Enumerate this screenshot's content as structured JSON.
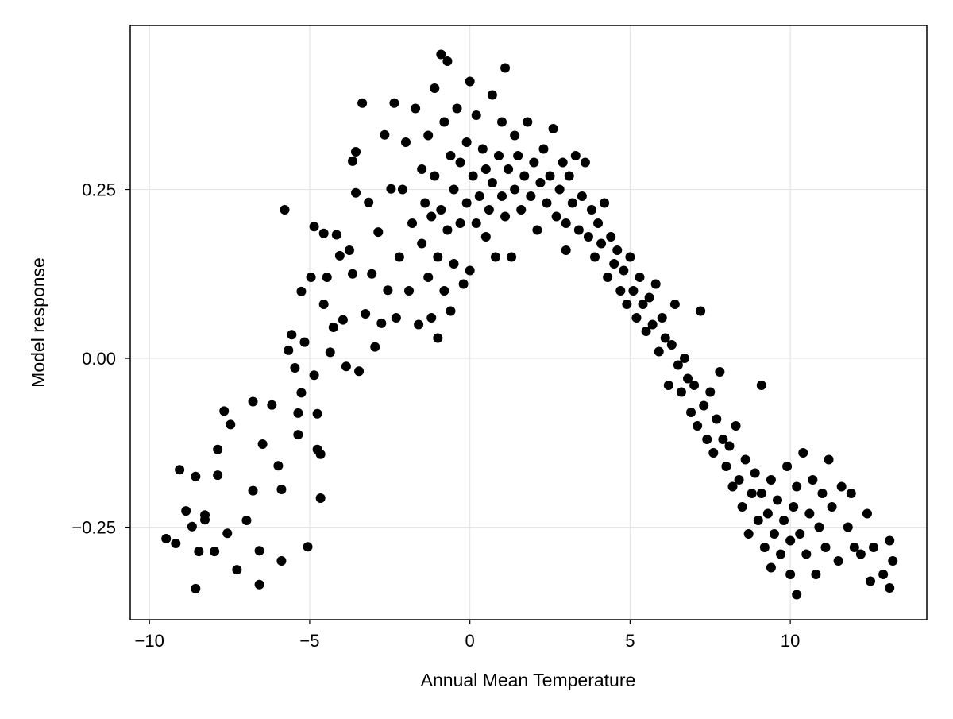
{
  "chart_data": {
    "type": "scatter",
    "title": "",
    "xlabel": "Annual Mean Temperature",
    "ylabel": "Model response",
    "xlim": [
      -10.6,
      14.26
    ],
    "ylim": [
      -0.387,
      0.493
    ],
    "xticks": [
      -10,
      -5,
      0,
      5,
      10
    ],
    "xtick_labels": [
      "−10",
      "−5",
      "0",
      "5",
      "10"
    ],
    "yticks": [
      -0.25,
      0,
      0.25
    ],
    "ytick_labels": [
      "−0.25",
      "0.00",
      "0.25"
    ],
    "grid": true,
    "marker_color": "#000000",
    "grid_color": "#e6e6e6",
    "points": [
      [
        -9.48,
        -0.267
      ],
      [
        -9.18,
        -0.274
      ],
      [
        -9.06,
        -0.165
      ],
      [
        -8.56,
        -0.341
      ],
      [
        -8.56,
        -0.175
      ],
      [
        -8.86,
        -0.226
      ],
      [
        -8.67,
        -0.249
      ],
      [
        -8.46,
        -0.286
      ],
      [
        -8.27,
        -0.232
      ],
      [
        -8.27,
        -0.239
      ],
      [
        -7.97,
        -0.286
      ],
      [
        -7.87,
        -0.173
      ],
      [
        -7.87,
        -0.135
      ],
      [
        -7.67,
        -0.078
      ],
      [
        -7.47,
        -0.098
      ],
      [
        -7.57,
        -0.259
      ],
      [
        -7.27,
        -0.313
      ],
      [
        -6.97,
        -0.24
      ],
      [
        -6.77,
        -0.064
      ],
      [
        -6.77,
        -0.196
      ],
      [
        -6.57,
        -0.335
      ],
      [
        -6.57,
        -0.285
      ],
      [
        -6.47,
        -0.127
      ],
      [
        -6.18,
        -0.069
      ],
      [
        -5.98,
        -0.159
      ],
      [
        -5.88,
        -0.194
      ],
      [
        -5.88,
        -0.3
      ],
      [
        -5.78,
        0.22
      ],
      [
        -5.66,
        0.012
      ],
      [
        -5.56,
        0.035
      ],
      [
        -5.46,
        -0.014
      ],
      [
        -5.36,
        -0.113
      ],
      [
        -5.36,
        -0.081
      ],
      [
        -5.26,
        -0.051
      ],
      [
        -5.26,
        0.099
      ],
      [
        -5.16,
        0.024
      ],
      [
        -5.06,
        -0.279
      ],
      [
        -4.96,
        0.12
      ],
      [
        -4.86,
        0.195
      ],
      [
        -4.86,
        -0.025
      ],
      [
        -4.76,
        -0.082
      ],
      [
        -4.76,
        -0.135
      ],
      [
        -4.66,
        -0.207
      ],
      [
        -4.66,
        -0.142
      ],
      [
        -4.56,
        0.185
      ],
      [
        -4.56,
        0.08
      ],
      [
        -4.46,
        0.12
      ],
      [
        -4.36,
        0.009
      ],
      [
        -4.26,
        0.046
      ],
      [
        -4.16,
        0.183
      ],
      [
        -4.06,
        0.152
      ],
      [
        -3.96,
        0.057
      ],
      [
        -3.86,
        -0.012
      ],
      [
        -3.76,
        0.16
      ],
      [
        -3.66,
        0.125
      ],
      [
        -3.66,
        0.292
      ],
      [
        -3.56,
        0.306
      ],
      [
        -3.56,
        0.245
      ],
      [
        -3.46,
        -0.019
      ],
      [
        -3.36,
        0.378
      ],
      [
        -3.26,
        0.066
      ],
      [
        -3.16,
        0.231
      ],
      [
        -3.06,
        0.125
      ],
      [
        -2.96,
        0.017
      ],
      [
        -2.86,
        0.187
      ],
      [
        -2.76,
        0.052
      ],
      [
        -2.66,
        0.331
      ],
      [
        -2.56,
        0.101
      ],
      [
        -2.46,
        0.251
      ],
      [
        -2.36,
        0.378
      ],
      [
        -2.3,
        0.06
      ],
      [
        -2.2,
        0.15
      ],
      [
        -2.1,
        0.25
      ],
      [
        -2.0,
        0.32
      ],
      [
        -1.9,
        0.1
      ],
      [
        -1.8,
        0.2
      ],
      [
        -1.7,
        0.37
      ],
      [
        -1.6,
        0.05
      ],
      [
        -1.5,
        0.28
      ],
      [
        -1.5,
        0.17
      ],
      [
        -1.4,
        0.23
      ],
      [
        -1.3,
        0.12
      ],
      [
        -1.3,
        0.33
      ],
      [
        -1.2,
        0.06
      ],
      [
        -1.2,
        0.21
      ],
      [
        -1.1,
        0.4
      ],
      [
        -1.1,
        0.27
      ],
      [
        -1.0,
        0.15
      ],
      [
        -1.0,
        0.03
      ],
      [
        -0.9,
        0.45
      ],
      [
        -0.9,
        0.22
      ],
      [
        -0.8,
        0.35
      ],
      [
        -0.8,
        0.1
      ],
      [
        -0.7,
        0.19
      ],
      [
        -0.7,
        0.44
      ],
      [
        -0.6,
        0.3
      ],
      [
        -0.6,
        0.07
      ],
      [
        -0.5,
        0.25
      ],
      [
        -0.5,
        0.14
      ],
      [
        -0.4,
        0.37
      ],
      [
        -0.3,
        0.2
      ],
      [
        -0.3,
        0.29
      ],
      [
        -0.2,
        0.11
      ],
      [
        -0.1,
        0.32
      ],
      [
        -0.1,
        0.23
      ],
      [
        0.0,
        0.13
      ],
      [
        0.0,
        0.41
      ],
      [
        0.1,
        0.27
      ],
      [
        0.2,
        0.2
      ],
      [
        0.2,
        0.36
      ],
      [
        0.3,
        0.24
      ],
      [
        0.4,
        0.31
      ],
      [
        0.5,
        0.18
      ],
      [
        0.5,
        0.28
      ],
      [
        0.6,
        0.22
      ],
      [
        0.7,
        0.39
      ],
      [
        0.7,
        0.26
      ],
      [
        0.8,
        0.15
      ],
      [
        0.9,
        0.3
      ],
      [
        1.0,
        0.24
      ],
      [
        1.0,
        0.35
      ],
      [
        1.1,
        0.43
      ],
      [
        1.1,
        0.21
      ],
      [
        1.2,
        0.28
      ],
      [
        1.3,
        0.15
      ],
      [
        1.4,
        0.33
      ],
      [
        1.4,
        0.25
      ],
      [
        1.5,
        0.3
      ],
      [
        1.6,
        0.22
      ],
      [
        1.7,
        0.27
      ],
      [
        1.8,
        0.35
      ],
      [
        1.9,
        0.24
      ],
      [
        2.0,
        0.29
      ],
      [
        2.1,
        0.19
      ],
      [
        2.2,
        0.26
      ],
      [
        2.3,
        0.31
      ],
      [
        2.4,
        0.23
      ],
      [
        2.5,
        0.27
      ],
      [
        2.6,
        0.34
      ],
      [
        2.7,
        0.21
      ],
      [
        2.8,
        0.25
      ],
      [
        2.9,
        0.29
      ],
      [
        3.0,
        0.2
      ],
      [
        3.0,
        0.16
      ],
      [
        3.1,
        0.27
      ],
      [
        3.2,
        0.23
      ],
      [
        3.3,
        0.3
      ],
      [
        3.4,
        0.19
      ],
      [
        3.5,
        0.24
      ],
      [
        3.6,
        0.29
      ],
      [
        3.7,
        0.18
      ],
      [
        3.8,
        0.22
      ],
      [
        3.9,
        0.15
      ],
      [
        4.0,
        0.2
      ],
      [
        4.1,
        0.17
      ],
      [
        4.2,
        0.23
      ],
      [
        4.3,
        0.12
      ],
      [
        4.4,
        0.18
      ],
      [
        4.5,
        0.14
      ],
      [
        4.6,
        0.16
      ],
      [
        4.7,
        0.1
      ],
      [
        4.8,
        0.13
      ],
      [
        4.9,
        0.08
      ],
      [
        5.0,
        0.15
      ],
      [
        5.1,
        0.1
      ],
      [
        5.2,
        0.06
      ],
      [
        5.3,
        0.12
      ],
      [
        5.4,
        0.08
      ],
      [
        5.5,
        0.04
      ],
      [
        5.6,
        0.09
      ],
      [
        5.7,
        0.05
      ],
      [
        5.8,
        0.11
      ],
      [
        5.9,
        0.01
      ],
      [
        6.0,
        0.06
      ],
      [
        6.1,
        0.03
      ],
      [
        6.2,
        -0.04
      ],
      [
        6.3,
        0.02
      ],
      [
        6.4,
        0.08
      ],
      [
        6.5,
        -0.01
      ],
      [
        6.6,
        -0.05
      ],
      [
        6.7,
        0.0
      ],
      [
        6.8,
        -0.03
      ],
      [
        6.9,
        -0.08
      ],
      [
        7.0,
        -0.04
      ],
      [
        7.1,
        -0.1
      ],
      [
        7.2,
        0.07
      ],
      [
        7.3,
        -0.07
      ],
      [
        7.4,
        -0.12
      ],
      [
        7.5,
        -0.05
      ],
      [
        7.6,
        -0.14
      ],
      [
        7.7,
        -0.09
      ],
      [
        7.8,
        -0.02
      ],
      [
        7.9,
        -0.12
      ],
      [
        8.0,
        -0.16
      ],
      [
        8.1,
        -0.13
      ],
      [
        8.2,
        -0.19
      ],
      [
        8.3,
        -0.1
      ],
      [
        8.4,
        -0.18
      ],
      [
        8.5,
        -0.22
      ],
      [
        8.6,
        -0.15
      ],
      [
        8.7,
        -0.26
      ],
      [
        8.8,
        -0.2
      ],
      [
        8.9,
        -0.17
      ],
      [
        9.0,
        -0.24
      ],
      [
        9.1,
        -0.04
      ],
      [
        9.1,
        -0.2
      ],
      [
        9.2,
        -0.28
      ],
      [
        9.3,
        -0.23
      ],
      [
        9.4,
        -0.18
      ],
      [
        9.4,
        -0.31
      ],
      [
        9.5,
        -0.26
      ],
      [
        9.6,
        -0.21
      ],
      [
        9.7,
        -0.29
      ],
      [
        9.8,
        -0.24
      ],
      [
        9.9,
        -0.16
      ],
      [
        10.0,
        -0.27
      ],
      [
        10.0,
        -0.32
      ],
      [
        10.1,
        -0.22
      ],
      [
        10.2,
        -0.35
      ],
      [
        10.2,
        -0.19
      ],
      [
        10.3,
        -0.26
      ],
      [
        10.4,
        -0.14
      ],
      [
        10.5,
        -0.29
      ],
      [
        10.6,
        -0.23
      ],
      [
        10.7,
        -0.18
      ],
      [
        10.8,
        -0.32
      ],
      [
        10.9,
        -0.25
      ],
      [
        11.0,
        -0.2
      ],
      [
        11.1,
        -0.28
      ],
      [
        11.2,
        -0.15
      ],
      [
        11.3,
        -0.22
      ],
      [
        11.5,
        -0.3
      ],
      [
        11.6,
        -0.19
      ],
      [
        11.8,
        -0.25
      ],
      [
        11.9,
        -0.2
      ],
      [
        12.0,
        -0.28
      ],
      [
        12.2,
        -0.29
      ],
      [
        12.4,
        -0.23
      ],
      [
        12.5,
        -0.33
      ],
      [
        12.6,
        -0.28
      ],
      [
        12.9,
        -0.32
      ],
      [
        13.1,
        -0.27
      ],
      [
        13.1,
        -0.34
      ],
      [
        13.2,
        -0.3
      ]
    ]
  }
}
